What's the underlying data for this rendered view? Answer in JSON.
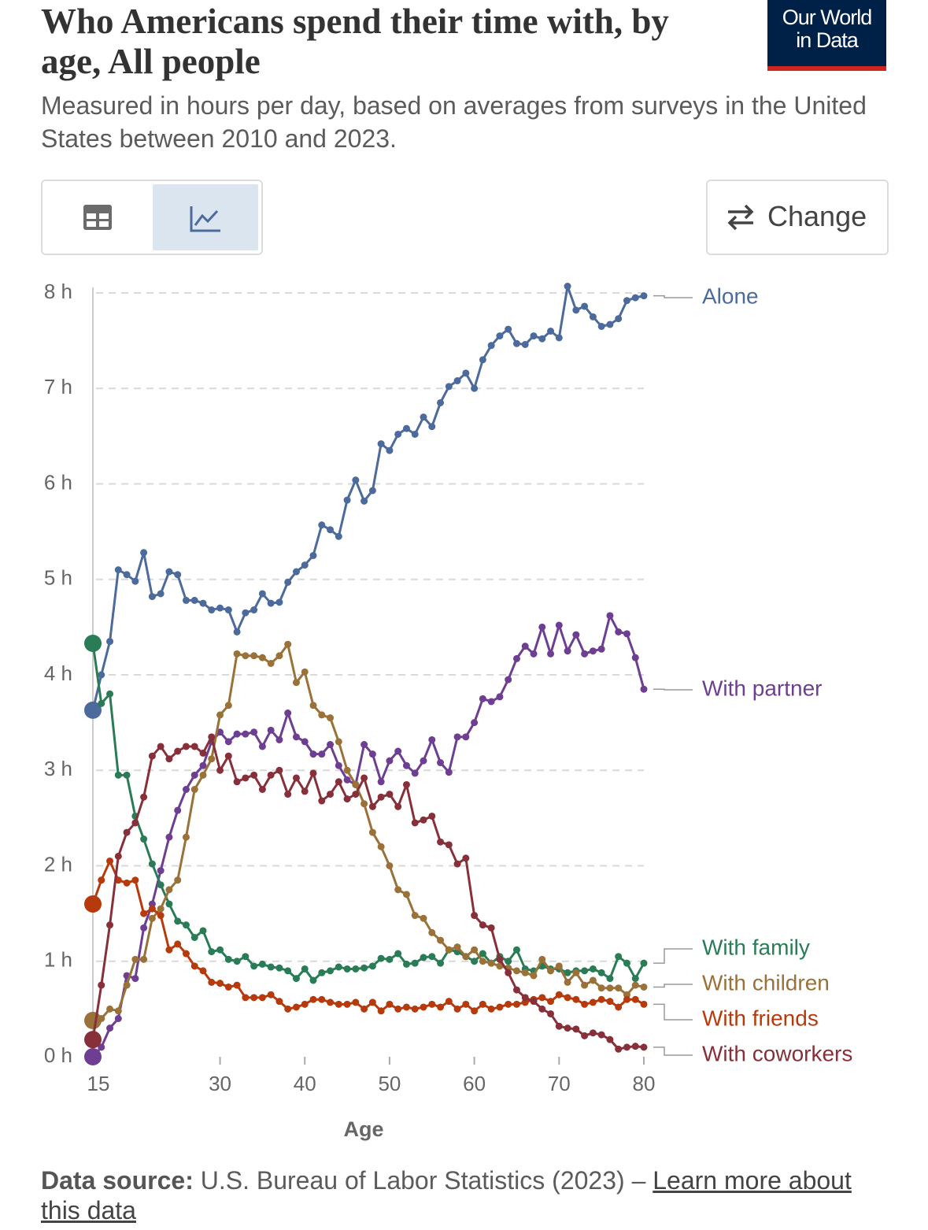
{
  "chart_data": {
    "type": "line",
    "title": "Who Americans spend their time with, by age, All people",
    "subtitle": "Measured in hours per day, based on averages from surveys in the United States between 2010 and 2023.",
    "logo": [
      "Our World",
      "in Data"
    ],
    "change_button": "Change",
    "x_label": "Age",
    "source_label": "Data source:",
    "source": "U.S. Bureau of Labor Statistics (2023) –",
    "source_link": "Learn more about this data",
    "x": [
      15,
      16,
      17,
      18,
      19,
      20,
      21,
      22,
      23,
      24,
      25,
      26,
      27,
      28,
      29,
      30,
      31,
      32,
      33,
      34,
      35,
      36,
      37,
      38,
      39,
      40,
      41,
      42,
      43,
      44,
      45,
      46,
      47,
      48,
      49,
      50,
      51,
      52,
      53,
      54,
      55,
      56,
      57,
      58,
      59,
      60,
      61,
      62,
      63,
      64,
      65,
      66,
      67,
      68,
      69,
      70,
      71,
      72,
      73,
      74,
      75,
      76,
      77,
      78,
      79,
      80
    ],
    "xlim": [
      15,
      80
    ],
    "xticks": [
      15,
      30,
      40,
      50,
      60,
      70,
      80
    ],
    "ylim": [
      0,
      8
    ],
    "yticks": [
      {
        "value": 0,
        "label": "0 h"
      },
      {
        "value": 1,
        "label": "1 h"
      },
      {
        "value": 2,
        "label": "2 h"
      },
      {
        "value": 3,
        "label": "3 h"
      },
      {
        "value": 4,
        "label": "4 h"
      },
      {
        "value": 5,
        "label": "5 h"
      },
      {
        "value": 6,
        "label": "6 h"
      },
      {
        "value": 7,
        "label": "7 h"
      },
      {
        "value": 8,
        "label": "8 h"
      }
    ],
    "grid": true,
    "series": [
      {
        "name": "Alone",
        "color": "#4c6a9c",
        "values": [
          3.63,
          4.0,
          4.35,
          5.1,
          5.05,
          4.98,
          5.28,
          4.82,
          4.85,
          5.08,
          5.05,
          4.78,
          4.78,
          4.75,
          4.68,
          4.7,
          4.68,
          4.45,
          4.65,
          4.68,
          4.85,
          4.75,
          4.76,
          4.97,
          5.08,
          5.15,
          5.25,
          5.57,
          5.52,
          5.45,
          5.83,
          6.04,
          5.82,
          5.93,
          6.42,
          6.35,
          6.52,
          6.58,
          6.52,
          6.7,
          6.6,
          6.85,
          7.02,
          7.08,
          7.16,
          7.0,
          7.3,
          7.45,
          7.55,
          7.62,
          7.47,
          7.46,
          7.55,
          7.52,
          7.6,
          7.53,
          8.07,
          7.82,
          7.86,
          7.75,
          7.65,
          7.67,
          7.73,
          7.92,
          7.95,
          7.97
        ]
      },
      {
        "name": "With partner",
        "color": "#6d3e91",
        "values": [
          0,
          0.1,
          0.3,
          0.4,
          0.85,
          0.82,
          1.35,
          1.6,
          1.95,
          2.3,
          2.58,
          2.8,
          2.95,
          3.05,
          3.3,
          3.4,
          3.3,
          3.38,
          3.38,
          3.4,
          3.25,
          3.42,
          3.32,
          3.6,
          3.35,
          3.3,
          3.17,
          3.17,
          3.27,
          3.05,
          2.9,
          2.85,
          3.27,
          3.17,
          2.88,
          3.1,
          3.2,
          3.05,
          2.97,
          3.1,
          3.32,
          3.08,
          2.98,
          3.35,
          3.35,
          3.5,
          3.75,
          3.72,
          3.77,
          3.95,
          4.17,
          4.3,
          4.22,
          4.5,
          4.22,
          4.52,
          4.25,
          4.42,
          4.22,
          4.25,
          4.27,
          4.62,
          4.45,
          4.43,
          4.18,
          3.85
        ]
      },
      {
        "name": "With family",
        "color": "#2a7c56",
        "values": [
          4.33,
          3.7,
          3.8,
          2.95,
          2.95,
          2.52,
          2.28,
          2.02,
          1.8,
          1.6,
          1.42,
          1.38,
          1.25,
          1.32,
          1.1,
          1.12,
          1.02,
          1.0,
          1.05,
          0.95,
          0.97,
          0.94,
          0.93,
          0.9,
          0.82,
          0.92,
          0.8,
          0.88,
          0.9,
          0.94,
          0.92,
          0.92,
          0.93,
          0.95,
          1.03,
          1.02,
          1.08,
          0.97,
          0.98,
          1.04,
          1.05,
          0.98,
          1.12,
          1.1,
          1.05,
          1.0,
          1.08,
          0.98,
          1.05,
          1.0,
          1.12,
          0.92,
          0.9,
          0.95,
          0.92,
          0.92,
          0.88,
          0.9,
          0.9,
          0.92,
          0.88,
          0.82,
          1.05,
          0.98,
          0.82,
          0.98
        ]
      },
      {
        "name": "With children",
        "color": "#9a7138",
        "values": [
          0.38,
          0.4,
          0.5,
          0.48,
          0.75,
          1.02,
          1.02,
          1.45,
          1.55,
          1.75,
          1.85,
          2.3,
          2.8,
          2.95,
          3.12,
          3.58,
          3.68,
          4.22,
          4.2,
          4.2,
          4.18,
          4.12,
          4.2,
          4.32,
          3.92,
          4.03,
          3.68,
          3.58,
          3.55,
          3.3,
          3.0,
          2.85,
          2.65,
          2.35,
          2.2,
          2.0,
          1.75,
          1.7,
          1.48,
          1.45,
          1.3,
          1.22,
          1.12,
          1.15,
          1.05,
          1.12,
          1.0,
          0.98,
          0.95,
          0.93,
          0.9,
          0.88,
          0.85,
          1.02,
          0.9,
          0.95,
          0.78,
          0.88,
          0.75,
          0.8,
          0.72,
          0.72,
          0.72,
          0.65,
          0.75,
          0.73
        ]
      },
      {
        "name": "With friends",
        "color": "#b73a0c",
        "values": [
          1.6,
          1.85,
          2.05,
          1.85,
          1.82,
          1.85,
          1.5,
          1.55,
          1.48,
          1.12,
          1.18,
          1.08,
          0.95,
          0.9,
          0.78,
          0.77,
          0.73,
          0.75,
          0.62,
          0.62,
          0.62,
          0.65,
          0.58,
          0.5,
          0.52,
          0.55,
          0.6,
          0.6,
          0.57,
          0.55,
          0.55,
          0.57,
          0.5,
          0.57,
          0.48,
          0.55,
          0.5,
          0.52,
          0.5,
          0.52,
          0.55,
          0.52,
          0.58,
          0.5,
          0.55,
          0.48,
          0.55,
          0.5,
          0.52,
          0.55,
          0.55,
          0.57,
          0.6,
          0.62,
          0.58,
          0.65,
          0.62,
          0.6,
          0.55,
          0.57,
          0.6,
          0.58,
          0.52,
          0.6,
          0.6,
          0.55
        ]
      },
      {
        "name": "With coworkers",
        "color": "#883039",
        "values": [
          0.18,
          0.75,
          1.38,
          2.1,
          2.35,
          2.45,
          2.72,
          3.15,
          3.25,
          3.12,
          3.2,
          3.25,
          3.25,
          3.18,
          3.35,
          3.0,
          3.15,
          2.88,
          2.92,
          2.95,
          2.8,
          2.95,
          3.0,
          2.75,
          2.92,
          2.78,
          2.97,
          2.68,
          2.75,
          2.88,
          2.7,
          2.75,
          2.92,
          2.62,
          2.72,
          2.75,
          2.62,
          2.85,
          2.45,
          2.48,
          2.52,
          2.25,
          2.22,
          2.02,
          2.08,
          1.48,
          1.38,
          1.35,
          1.02,
          0.88,
          0.7,
          0.62,
          0.58,
          0.5,
          0.45,
          0.32,
          0.3,
          0.29,
          0.22,
          0.25,
          0.23,
          0.18,
          0.08,
          0.1,
          0.11,
          0.1
        ]
      }
    ]
  }
}
